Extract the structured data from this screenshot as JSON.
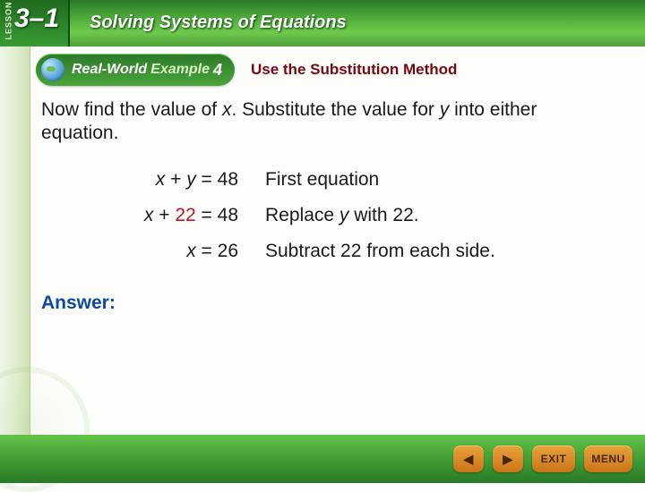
{
  "colors": {
    "accent_green_dark": "#2a7a28",
    "accent_green_light": "#6fc94e",
    "title_red": "#7a0610",
    "link_blue": "#0d4aa0",
    "sub_red": "#c01820",
    "nav_orange": "#e8a43a"
  },
  "header": {
    "lesson_label": "LESSON",
    "lesson_number": "3–1",
    "chapter_title": "Solving Systems of Equations"
  },
  "example": {
    "realworld_label": "Real-World",
    "example_label": "Example",
    "example_number": "4",
    "topic_title": "Use the Substitution Method"
  },
  "body": {
    "intro_pre": "Now find the value of ",
    "intro_var1": "x",
    "intro_mid": ". Substitute the value for ",
    "intro_var2": "y",
    "intro_post": " into either equation.",
    "steps": [
      {
        "lhs_x": "x",
        "lhs_plus": " + ",
        "lhs_y": "y",
        "lhs_eq": "  =  48",
        "rhs": "First equation",
        "y_is_sub": false
      },
      {
        "lhs_x": "x",
        "lhs_plus": " + ",
        "lhs_y": "22",
        "lhs_eq": "  =  48",
        "rhs_pre": "Replace ",
        "rhs_var": "y",
        "rhs_post": " with 22.",
        "y_is_sub": true
      },
      {
        "lhs_x": "x",
        "lhs_plus": "",
        "lhs_y": "",
        "lhs_eq": "  =  26",
        "rhs": "Subtract 22 from each side.",
        "y_is_sub": false
      }
    ],
    "answer_label": "Answer:"
  },
  "footer": {
    "exit_label": "EXIT",
    "menu_label": "MENU"
  }
}
